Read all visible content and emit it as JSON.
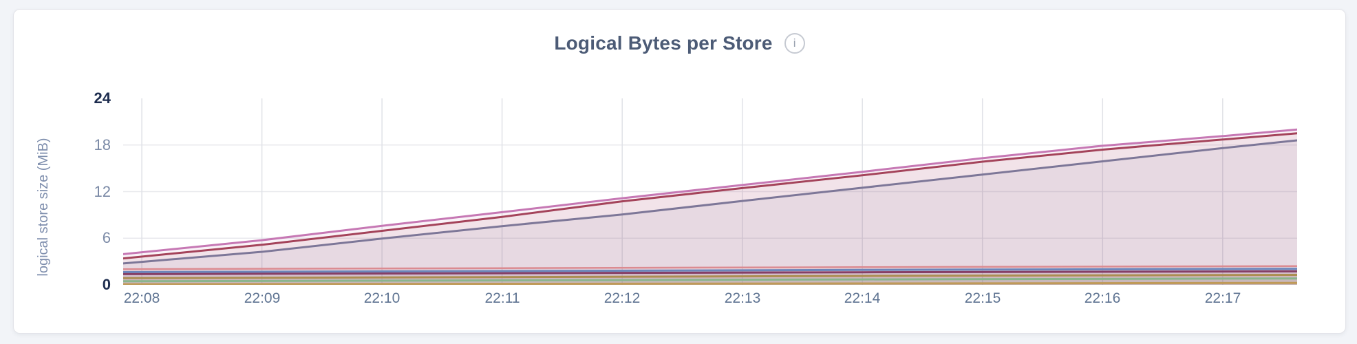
{
  "page": {
    "background": "#f2f4f8"
  },
  "card": {
    "background": "#ffffff",
    "border_color": "#e3e4e9"
  },
  "header": {
    "title": "Logical Bytes per Store",
    "title_color": "#4c5b76",
    "info_icon_glyph": "i"
  },
  "colors": {
    "grid_vertical": "#e0e2e7",
    "grid_horizontal": "#e8e9ed",
    "y_tick_text": "#7b8aa6",
    "y_tick_text_emphasized": "#1d2c4e",
    "x_tick_text": "#5f7492",
    "y_axis_title_text": "#7e8ead"
  },
  "chart_data": {
    "type": "area",
    "title": "Logical Bytes per Store",
    "xlabel": "",
    "ylabel": "logical store size (MiB)",
    "ylim": [
      0,
      24
    ],
    "y_ticks": [
      0,
      6,
      12,
      18,
      24
    ],
    "y_ticks_emphasized": [
      0,
      24
    ],
    "y_gridlines": [
      6,
      12,
      18
    ],
    "x_ticks": [
      "22:08",
      "22:09",
      "22:10",
      "22:11",
      "22:12",
      "22:13",
      "22:14",
      "22:15",
      "22:16",
      "22:17"
    ],
    "x_domain_minutes": [
      -0.155,
      9.62
    ],
    "grid": true,
    "legend_position": "none",
    "area_opacity": 0.09,
    "units": "MiB",
    "series": [
      {
        "id": "series-1",
        "color_name": "orchid",
        "color": "#c678b4",
        "stroke_width": 3,
        "points": [
          [
            -0.155,
            3.95
          ],
          [
            1,
            5.75
          ],
          [
            2,
            7.6
          ],
          [
            3,
            9.35
          ],
          [
            4,
            11.15
          ],
          [
            5,
            12.85
          ],
          [
            6,
            14.55
          ],
          [
            7,
            16.3
          ],
          [
            8,
            17.9
          ],
          [
            9,
            19.15
          ],
          [
            9.62,
            20.0
          ]
        ]
      },
      {
        "id": "series-2",
        "color_name": "maroon",
        "color": "#a4435a",
        "stroke_width": 3,
        "points": [
          [
            -0.155,
            3.4
          ],
          [
            1,
            5.15
          ],
          [
            2,
            6.95
          ],
          [
            3,
            8.75
          ],
          [
            4,
            10.75
          ],
          [
            5,
            12.45
          ],
          [
            6,
            14.1
          ],
          [
            7,
            15.85
          ],
          [
            8,
            17.4
          ],
          [
            9,
            18.7
          ],
          [
            9.62,
            19.5
          ]
        ]
      },
      {
        "id": "series-3",
        "color_name": "slate-purple",
        "color": "#7d7798",
        "stroke_width": 3,
        "points": [
          [
            -0.155,
            2.75
          ],
          [
            1,
            4.25
          ],
          [
            2,
            5.95
          ],
          [
            3,
            7.55
          ],
          [
            4,
            9.05
          ],
          [
            5,
            10.8
          ],
          [
            6,
            12.5
          ],
          [
            7,
            14.2
          ],
          [
            8,
            15.9
          ],
          [
            9,
            17.6
          ],
          [
            9.62,
            18.6
          ]
        ]
      },
      {
        "id": "series-4",
        "color_name": "rose",
        "color": "#db8b91",
        "stroke_width": 2.5,
        "points": [
          [
            -0.155,
            2.02
          ],
          [
            3,
            2.15
          ],
          [
            6,
            2.28
          ],
          [
            9.62,
            2.42
          ]
        ]
      },
      {
        "id": "series-5",
        "color_name": "steel-blue",
        "color": "#6b86bb",
        "stroke_width": 3,
        "points": [
          [
            -0.155,
            1.64
          ],
          [
            3,
            1.77
          ],
          [
            6,
            1.92
          ],
          [
            9.62,
            2.06
          ]
        ]
      },
      {
        "id": "series-6",
        "color_name": "plum",
        "color": "#853f66",
        "stroke_width": 3,
        "points": [
          [
            -0.155,
            1.38
          ],
          [
            3,
            1.5
          ],
          [
            6,
            1.62
          ],
          [
            9.62,
            1.74
          ]
        ]
      },
      {
        "id": "series-7",
        "color_name": "dark-tan",
        "color": "#ac8e51",
        "stroke_width": 3,
        "points": [
          [
            -0.155,
            0.86
          ],
          [
            3,
            1.0
          ],
          [
            6,
            1.14
          ],
          [
            9.62,
            1.28
          ]
        ]
      },
      {
        "id": "series-8",
        "color_name": "green",
        "color": "#8ab58d",
        "stroke_width": 3,
        "points": [
          [
            -0.155,
            0.46
          ],
          [
            3,
            0.58
          ],
          [
            6,
            0.7
          ],
          [
            9.62,
            0.82
          ]
        ]
      },
      {
        "id": "series-9",
        "color_name": "gold",
        "color": "#bf9a58",
        "stroke_width": 3,
        "points": [
          [
            -0.155,
            0.08
          ],
          [
            3,
            0.13
          ],
          [
            6,
            0.18
          ],
          [
            9.62,
            0.24
          ]
        ]
      }
    ]
  }
}
